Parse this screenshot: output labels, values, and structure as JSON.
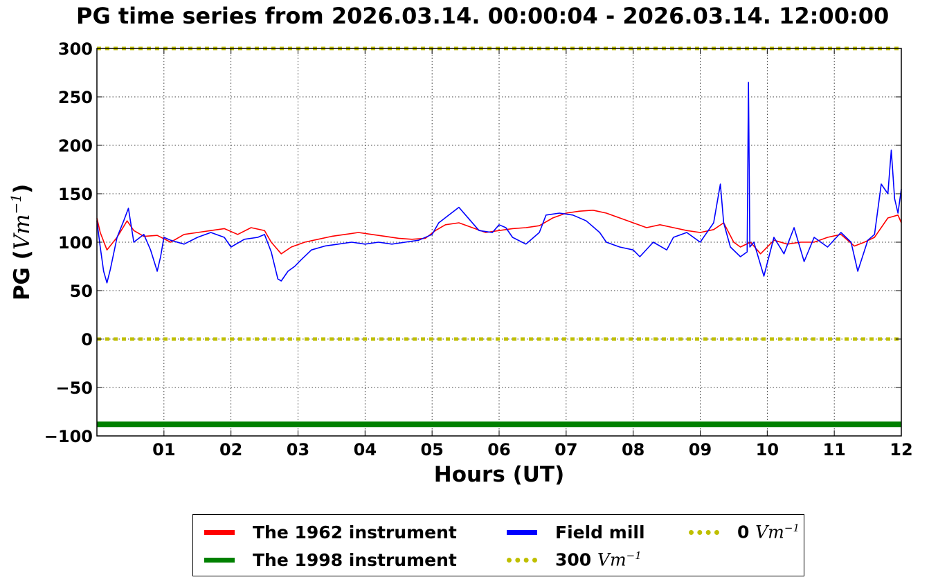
{
  "chart_data": {
    "type": "line",
    "title": "PG time series from 2026.03.14. 00:00:04 - 2026.03.14. 12:00:00",
    "xlabel": "Hours (UT)",
    "ylabel_prefix": "PG (",
    "ylabel_unit": "Vm",
    "ylabel_exp": "−1",
    "ylabel_suffix": ")",
    "xlim": [
      0,
      12
    ],
    "ylim": [
      -100,
      300
    ],
    "xticks": [
      1,
      2,
      3,
      4,
      5,
      6,
      7,
      8,
      9,
      10,
      11,
      12
    ],
    "xtick_labels": [
      "01",
      "02",
      "03",
      "04",
      "05",
      "06",
      "07",
      "08",
      "09",
      "10",
      "11",
      "12"
    ],
    "yticks": [
      -100,
      -50,
      0,
      50,
      100,
      150,
      200,
      250,
      300
    ],
    "ytick_labels": [
      "−100",
      "−50",
      "0",
      "50",
      "100",
      "150",
      "200",
      "250",
      "300"
    ],
    "grid": true,
    "legend_position": "below",
    "series": [
      {
        "name": "The 1962 instrument",
        "color": "#ff0000",
        "style": "solid",
        "x": [
          0,
          0.05,
          0.15,
          0.3,
          0.45,
          0.55,
          0.7,
          0.9,
          1.1,
          1.3,
          1.5,
          1.7,
          1.9,
          2.1,
          2.3,
          2.5,
          2.6,
          2.75,
          2.9,
          3.1,
          3.3,
          3.5,
          3.7,
          3.9,
          4.1,
          4.3,
          4.5,
          4.7,
          4.9,
          5.05,
          5.2,
          5.4,
          5.6,
          5.8,
          6.0,
          6.2,
          6.4,
          6.6,
          6.8,
          7.0,
          7.2,
          7.4,
          7.6,
          7.8,
          8.0,
          8.2,
          8.4,
          8.6,
          8.8,
          9.0,
          9.2,
          9.35,
          9.5,
          9.6,
          9.75,
          9.9,
          10.1,
          10.3,
          10.5,
          10.7,
          10.9,
          11.1,
          11.3,
          11.45,
          11.6,
          11.8,
          11.95,
          12.0
        ],
        "y": [
          125,
          110,
          92,
          105,
          122,
          112,
          106,
          107,
          100,
          108,
          110,
          112,
          114,
          108,
          115,
          112,
          100,
          88,
          95,
          100,
          103,
          106,
          108,
          110,
          108,
          106,
          104,
          103,
          104,
          112,
          118,
          120,
          115,
          110,
          112,
          114,
          115,
          117,
          125,
          130,
          132,
          133,
          130,
          125,
          120,
          115,
          118,
          115,
          112,
          110,
          113,
          120,
          100,
          95,
          100,
          88,
          102,
          98,
          100,
          100,
          105,
          108,
          96,
          100,
          105,
          125,
          128,
          120
        ]
      },
      {
        "name": "The 1998 instrument",
        "color": "#008000",
        "style": "solid",
        "x": [
          0,
          12
        ],
        "y": [
          -88,
          -88
        ]
      },
      {
        "name": "Field mill",
        "color": "#0000ff",
        "style": "solid",
        "x": [
          0,
          0.05,
          0.1,
          0.15,
          0.2,
          0.3,
          0.4,
          0.47,
          0.55,
          0.7,
          0.8,
          0.9,
          0.95,
          1.0,
          1.1,
          1.3,
          1.5,
          1.7,
          1.9,
          2.0,
          2.2,
          2.4,
          2.5,
          2.6,
          2.7,
          2.75,
          2.85,
          2.95,
          3.05,
          3.2,
          3.4,
          3.6,
          3.8,
          4.0,
          4.2,
          4.4,
          4.6,
          4.8,
          5.0,
          5.1,
          5.25,
          5.4,
          5.5,
          5.7,
          5.9,
          6.0,
          6.1,
          6.2,
          6.4,
          6.6,
          6.7,
          6.9,
          7.1,
          7.3,
          7.5,
          7.6,
          7.8,
          8.0,
          8.1,
          8.3,
          8.5,
          8.6,
          8.8,
          9.0,
          9.2,
          9.3,
          9.35,
          9.45,
          9.6,
          9.7,
          9.72,
          9.74,
          9.8,
          9.95,
          10.1,
          10.25,
          10.4,
          10.55,
          10.7,
          10.9,
          11.1,
          11.25,
          11.35,
          11.5,
          11.6,
          11.7,
          11.8,
          11.85,
          11.9,
          11.95,
          12.0
        ],
        "y": [
          122,
          95,
          70,
          58,
          72,
          105,
          122,
          135,
          100,
          108,
          92,
          70,
          85,
          105,
          102,
          98,
          105,
          110,
          105,
          95,
          103,
          105,
          108,
          90,
          62,
          60,
          70,
          75,
          82,
          92,
          96,
          98,
          100,
          98,
          100,
          98,
          100,
          102,
          108,
          120,
          128,
          136,
          128,
          112,
          110,
          118,
          115,
          105,
          98,
          110,
          128,
          130,
          128,
          122,
          110,
          100,
          95,
          92,
          85,
          100,
          92,
          105,
          110,
          100,
          120,
          160,
          120,
          95,
          85,
          90,
          265,
          95,
          100,
          65,
          105,
          88,
          115,
          80,
          105,
          95,
          110,
          100,
          70,
          102,
          108,
          160,
          150,
          195,
          145,
          130,
          155
        ]
      },
      {
        "name": "300",
        "unit": "Vm",
        "unit_exp": "−1",
        "color": "#bfbf00",
        "style": "dotted",
        "x": [
          0,
          12
        ],
        "y": [
          300,
          300
        ]
      },
      {
        "name": "0",
        "unit": "Vm",
        "unit_exp": "−1",
        "color": "#bfbf00",
        "style": "dotted",
        "x": [
          0,
          12
        ],
        "y": [
          0,
          0
        ]
      }
    ]
  }
}
